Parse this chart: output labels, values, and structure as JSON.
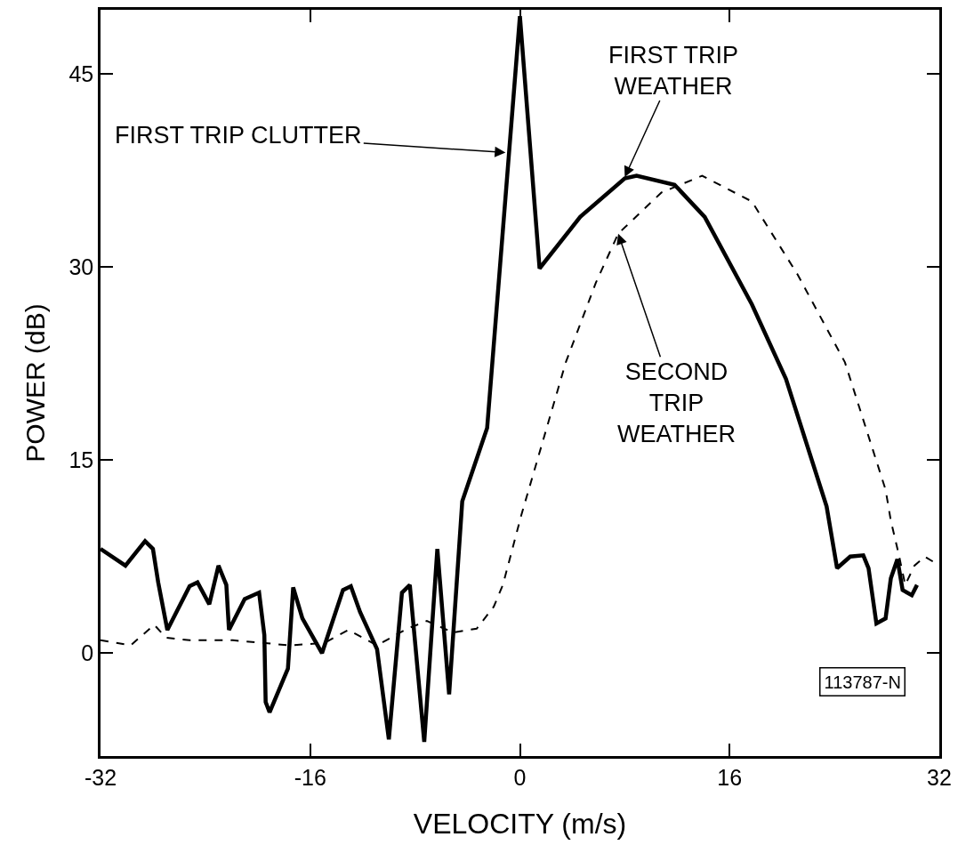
{
  "chart_data": {
    "type": "line",
    "xlabel": "VELOCITY (m/s)",
    "ylabel": "POWER (dB)",
    "xlim": [
      -32,
      32
    ],
    "ylim": [
      -8,
      50
    ],
    "xticks": [
      -32,
      -16,
      0,
      16,
      32
    ],
    "yticks": [
      0,
      15,
      30,
      45
    ],
    "series": [
      {
        "color": "#000000",
        "line_style": "solid",
        "x": [
          -32,
          -30.1,
          -28.6,
          -28.0,
          -27.6,
          -26.9,
          -25.2,
          -24.6,
          -23.7,
          -23.0,
          -22.4,
          -22.2,
          -21.0,
          -19.9,
          -19.5,
          -19.4,
          -19.1,
          -17.7,
          -17.3,
          -16.6,
          -15.1,
          -13.5,
          -12.9,
          -12.2,
          -10.9,
          -10.0,
          -9.0,
          -8.4,
          -7.3,
          -6.3,
          -5.4,
          -4.4,
          -2.5,
          0,
          1.5,
          4.6,
          8.0,
          8.9,
          11.8,
          14.1,
          17.7,
          20.3,
          23.4,
          24.2,
          25.2,
          26.2,
          26.6,
          27.2,
          27.9,
          28.3,
          28.8,
          29.2,
          29.9,
          30.3
        ],
        "values": [
          8.1,
          6.8,
          8.7,
          8.1,
          5.5,
          1.8,
          5.2,
          5.5,
          3.8,
          6.8,
          5.3,
          1.8,
          4.2,
          4.7,
          1.4,
          -3.8,
          -4.6,
          -1.2,
          5.1,
          2.7,
          0,
          4.9,
          5.2,
          3.2,
          0.3,
          -6.7,
          4.7,
          5.3,
          -6.9,
          8.1,
          -3.2,
          11.8,
          17.5,
          49.5,
          29.9,
          33.9,
          36.9,
          37.1,
          36.4,
          33.9,
          27.1,
          21.3,
          11.4,
          6.6,
          7.5,
          7.6,
          6.6,
          2.3,
          2.7,
          5.8,
          7.3,
          4.9,
          4.5,
          5.3
        ]
      },
      {
        "color": "#000000",
        "line_style": "dashed",
        "x": [
          -32,
          -29.7,
          -27.9,
          -27.0,
          -25.2,
          -21.9,
          -17.5,
          -14.9,
          -13.1,
          -10.9,
          -8.6,
          -7.1,
          -5.1,
          -3.3,
          -2.0,
          -1.3,
          0.1,
          3.5,
          5.8,
          7.5,
          10.8,
          13.9,
          17.7,
          21.2,
          24.8,
          27.9,
          28.3,
          28.9,
          29.4,
          30.1,
          30.9,
          31.7
        ],
        "values": [
          1.0,
          0.6,
          2.2,
          1.2,
          1.0,
          1.0,
          0.6,
          0.8,
          1.8,
          0.6,
          1.9,
          2.5,
          1.6,
          1.9,
          3.6,
          5.3,
          10.7,
          22.6,
          28.8,
          32.6,
          35.8,
          37.1,
          35.1,
          29.4,
          22.6,
          12.7,
          10.3,
          7.7,
          5.3,
          6.8,
          7.5,
          7.0
        ]
      }
    ],
    "annotations": [
      {
        "text": "FIRST TRIP CLUTTER",
        "x": -1.1,
        "y": 38.9
      },
      {
        "text": "FIRST TRIP\nWEATHER",
        "x": 8.0,
        "y": 37.0
      },
      {
        "text": "SECOND\nTRIP\nWEATHER",
        "x": 7.5,
        "y": 32.6
      },
      "113787-N"
    ]
  }
}
